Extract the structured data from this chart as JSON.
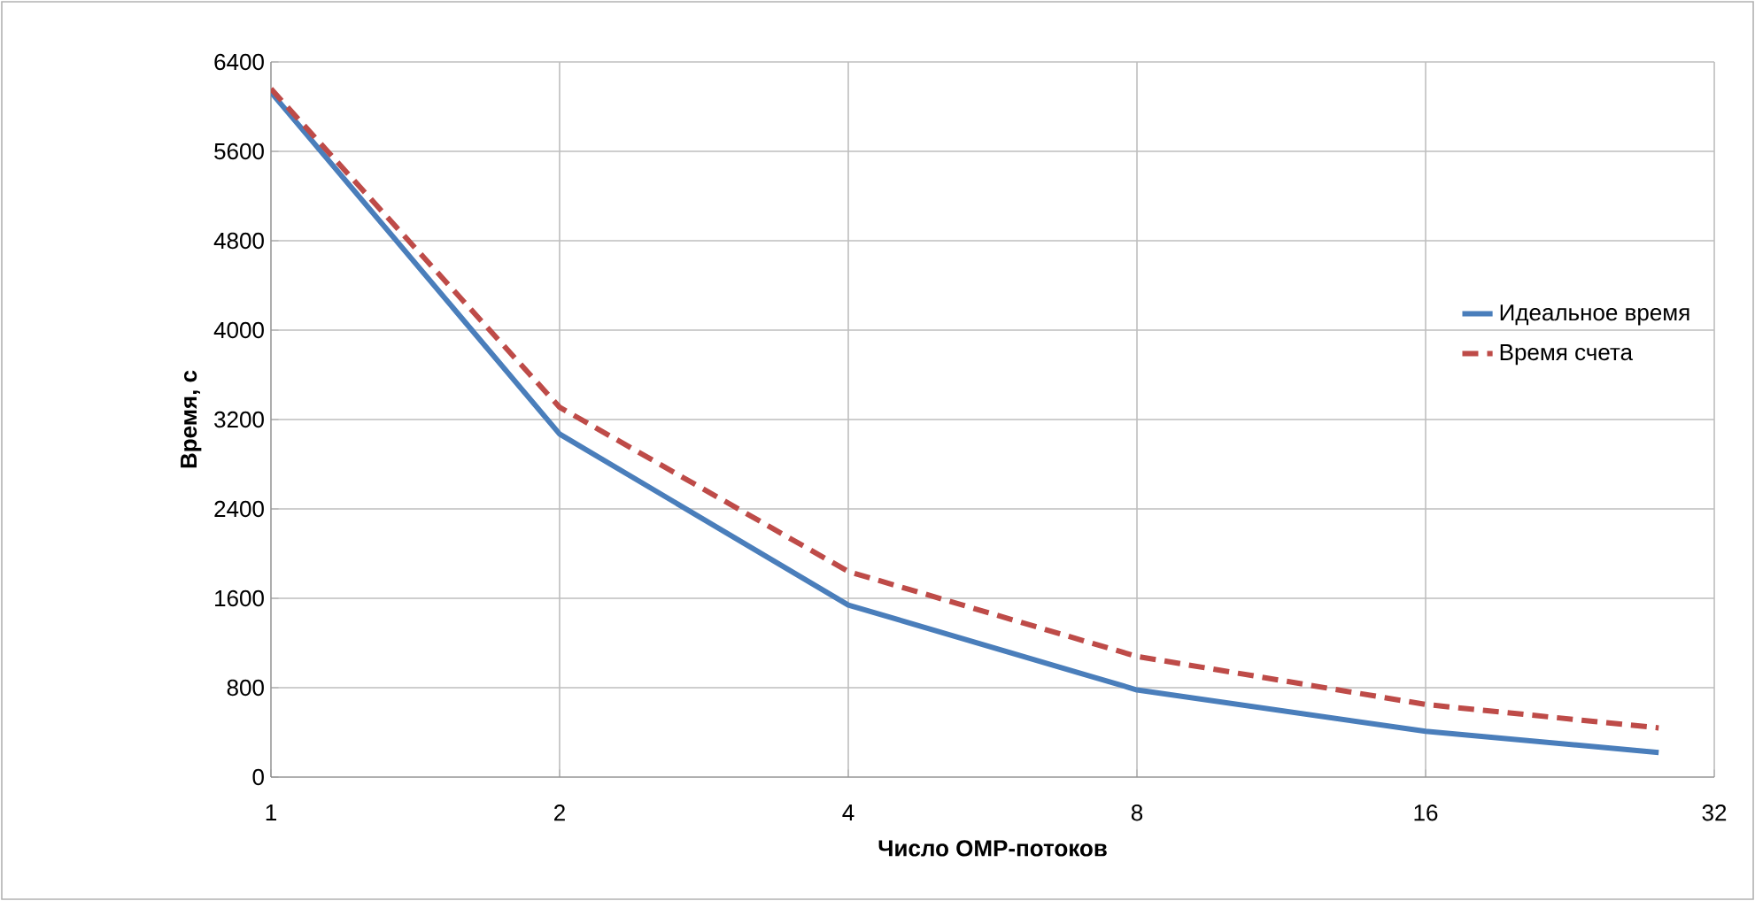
{
  "chart_data": {
    "type": "line",
    "xlabel": "Число OMP-потоков",
    "ylabel": "Время, с",
    "x": [
      1,
      2,
      4,
      8,
      16,
      28
    ],
    "series": [
      {
        "name": "Идеальное время",
        "color": "#4a7ebb",
        "line_style": "solid",
        "values": [
          6130,
          3070,
          1540,
          780,
          410,
          220
        ]
      },
      {
        "name": "Время счета",
        "color": "#be4b48",
        "line_style": "dashed",
        "values": [
          6160,
          3310,
          1840,
          1080,
          650,
          440
        ]
      }
    ],
    "log": "x",
    "xlim": [
      1,
      32
    ],
    "xticks": [
      1,
      2,
      4,
      8,
      16,
      32
    ],
    "ylim": [
      0,
      6400
    ],
    "yticks": [
      0,
      800,
      1600,
      2400,
      3200,
      4000,
      4800,
      5600,
      6400
    ],
    "grid": true,
    "legend": "right",
    "marker": "none"
  }
}
